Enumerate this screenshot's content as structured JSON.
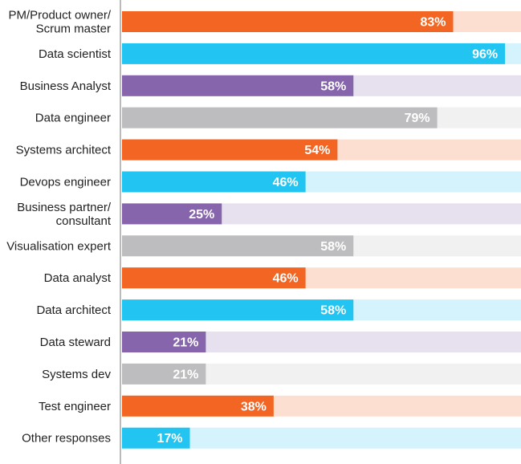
{
  "chart_data": {
    "type": "bar",
    "orientation": "horizontal",
    "title": "",
    "xlabel": "",
    "ylabel": "",
    "xlim": [
      0,
      100
    ],
    "grid": false,
    "legend": "none",
    "categories": [
      "PM/Product owner/\nScrum master",
      "Data scientist",
      "Business Analyst",
      "Data engineer",
      "Systems architect",
      "Devops engineer",
      "Business partner/\nconsultant",
      "Visualisation expert",
      "Data analyst",
      "Data architect",
      "Data steward",
      "Systems dev",
      "Test engineer",
      "Other responses"
    ],
    "values": [
      83,
      96,
      58,
      79,
      54,
      46,
      25,
      58,
      46,
      58,
      21,
      21,
      38,
      17
    ],
    "value_labels": [
      "83%",
      "96%",
      "58%",
      "79%",
      "54%",
      "46%",
      "25%",
      "58%",
      "46%",
      "58%",
      "21%",
      "21%",
      "38%",
      "17%"
    ],
    "colors": {
      "orange": "#f26522",
      "orange_light": "#fddfd2",
      "blue": "#22c5f2",
      "blue_light": "#d4f3fc",
      "purple": "#8665ad",
      "purple_light": "#e6e0ef",
      "gray": "#bdbdbf",
      "gray_light": "#f1f1f2",
      "axis": "#bbbbbb"
    },
    "bar_color_cycle": [
      "orange",
      "blue",
      "purple",
      "gray"
    ]
  }
}
